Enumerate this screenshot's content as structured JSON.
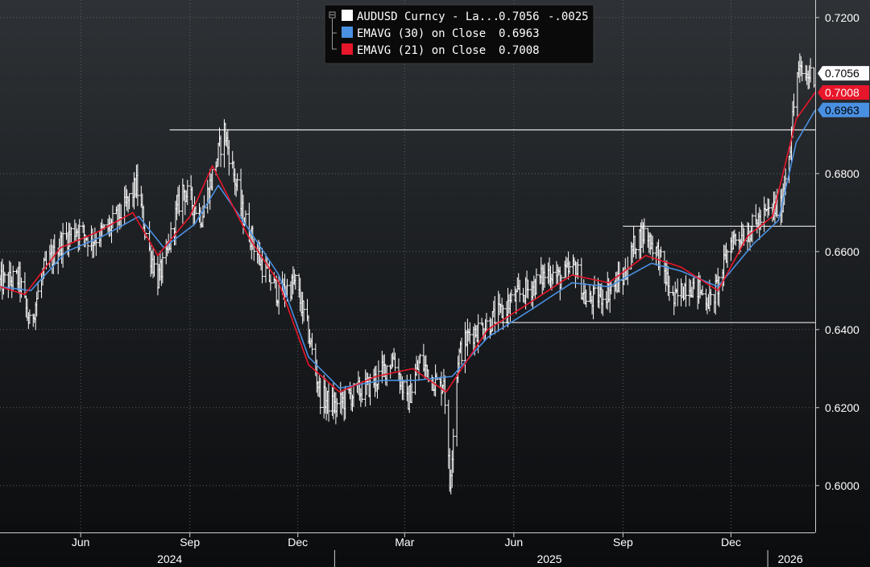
{
  "colors": {
    "price": "#ffffff",
    "ema30": "#4a90e2",
    "ema21": "#e8162a",
    "ref_line": "#e6e6e6",
    "grid": "#5b6066",
    "legend_bg": "#0a0a0a"
  },
  "legend": {
    "price_label": "AUDUSD Curncy - La...",
    "price_value": "0.7056",
    "price_change": "-.0025",
    "ema30_label": "EMAVG (30)  on Close",
    "ema30_value": "0.6963",
    "ema21_label": "EMAVG (21)  on Close",
    "ema21_value": "0.7008"
  },
  "tags": {
    "price": "0.7056",
    "ema21": "0.7008",
    "ema30": "0.6963"
  },
  "chart_data": {
    "type": "line",
    "title": "",
    "xlabel": "",
    "ylabel": "",
    "x_range": [
      "2024-03-25",
      "2026-02-10"
    ],
    "ylim": [
      0.588,
      0.7245
    ],
    "y_ticks": [
      "0.6000",
      "0.6200",
      "0.6400",
      "0.6600",
      "0.6800",
      "0.7200"
    ],
    "grid": true,
    "legend_placement": "top-center",
    "x_month_ticks": [
      {
        "date": "2024-06-01",
        "label": "Jun"
      },
      {
        "date": "2024-09-01",
        "label": "Sep"
      },
      {
        "date": "2024-12-01",
        "label": "Dec"
      },
      {
        "date": "2025-03-01",
        "label": "Mar"
      },
      {
        "date": "2025-06-01",
        "label": "Jun"
      },
      {
        "date": "2025-09-01",
        "label": "Sep"
      },
      {
        "date": "2025-12-01",
        "label": "Dec"
      }
    ],
    "x_year_labels": [
      {
        "date": "2024-08-15",
        "label": "2024"
      },
      {
        "date": "2025-07-01",
        "label": "2025"
      },
      {
        "date": "2026-01-20",
        "label": "2026"
      }
    ],
    "x_year_separators": [
      "2025-01-01",
      "2026-01-01"
    ],
    "horizontal_lines": [
      {
        "value": 0.6912,
        "from": "2024-08-15"
      },
      {
        "value": 0.6665,
        "from": "2025-09-01"
      },
      {
        "value": 0.6418,
        "from": "2025-05-15"
      }
    ],
    "series": [
      {
        "name": "AUDUSD Curncy",
        "style": "daily-bars",
        "anchor_dates": [
          "2024-03-25",
          "2024-04-10",
          "2024-04-19",
          "2024-05-01",
          "2024-05-15",
          "2024-05-28",
          "2024-06-10",
          "2024-06-25",
          "2024-07-08",
          "2024-07-18",
          "2024-07-29",
          "2024-08-05",
          "2024-08-12",
          "2024-08-19",
          "2024-08-26",
          "2024-09-02",
          "2024-09-11",
          "2024-09-30",
          "2024-10-15",
          "2024-10-31",
          "2024-11-15",
          "2024-11-29",
          "2024-12-10",
          "2024-12-20",
          "2025-01-02",
          "2025-01-13",
          "2025-01-28",
          "2025-02-07",
          "2025-02-20",
          "2025-03-03",
          "2025-03-14",
          "2025-03-31",
          "2025-04-03",
          "2025-04-08",
          "2025-04-15",
          "2025-04-25",
          "2025-05-08",
          "2025-05-20",
          "2025-06-02",
          "2025-06-16",
          "2025-07-01",
          "2025-07-10",
          "2025-07-23",
          "2025-08-01",
          "2025-08-15",
          "2025-09-01",
          "2025-09-12",
          "2025-09-20",
          "2025-10-01",
          "2025-10-14",
          "2025-10-25",
          "2025-11-05",
          "2025-11-14",
          "2025-11-21",
          "2025-12-01",
          "2025-12-15",
          "2025-12-29",
          "2026-01-05",
          "2026-01-12",
          "2026-01-20",
          "2026-01-26",
          "2026-02-02",
          "2026-02-09"
        ],
        "anchor_values": [
          0.652,
          0.653,
          0.641,
          0.655,
          0.662,
          0.666,
          0.663,
          0.666,
          0.671,
          0.677,
          0.66,
          0.653,
          0.658,
          0.668,
          0.676,
          0.673,
          0.669,
          0.691,
          0.67,
          0.657,
          0.649,
          0.652,
          0.639,
          0.623,
          0.62,
          0.623,
          0.625,
          0.628,
          0.633,
          0.621,
          0.632,
          0.625,
          0.628,
          0.6,
          0.633,
          0.639,
          0.641,
          0.644,
          0.648,
          0.651,
          0.655,
          0.653,
          0.656,
          0.647,
          0.649,
          0.653,
          0.663,
          0.665,
          0.659,
          0.647,
          0.652,
          0.65,
          0.647,
          0.652,
          0.663,
          0.665,
          0.669,
          0.671,
          0.671,
          0.688,
          0.706,
          0.705,
          0.7056
        ],
        "color_key": "price"
      },
      {
        "name": "EMAVG (30)  on Close",
        "style": "line",
        "anchor_dates": [
          "2024-03-25",
          "2024-04-20",
          "2024-05-20",
          "2024-06-20",
          "2024-07-20",
          "2024-08-10",
          "2024-09-05",
          "2024-09-25",
          "2024-10-20",
          "2024-11-15",
          "2024-12-10",
          "2025-01-05",
          "2025-02-10",
          "2025-03-10",
          "2025-04-10",
          "2025-05-10",
          "2025-06-15",
          "2025-07-20",
          "2025-08-20",
          "2025-09-25",
          "2025-10-20",
          "2025-11-20",
          "2025-12-20",
          "2026-01-10",
          "2026-01-25",
          "2026-02-10"
        ],
        "anchor_values": [
          0.651,
          0.65,
          0.66,
          0.664,
          0.669,
          0.661,
          0.667,
          0.677,
          0.666,
          0.654,
          0.633,
          0.625,
          0.627,
          0.627,
          0.628,
          0.638,
          0.645,
          0.652,
          0.651,
          0.657,
          0.655,
          0.651,
          0.662,
          0.668,
          0.688,
          0.6963
        ],
        "color_key": "ema30"
      },
      {
        "name": "EMAVG (21)  on Close",
        "style": "line",
        "anchor_dates": [
          "2024-03-25",
          "2024-04-15",
          "2024-05-15",
          "2024-06-15",
          "2024-07-15",
          "2024-08-05",
          "2024-09-01",
          "2024-09-20",
          "2024-10-20",
          "2024-11-15",
          "2024-12-10",
          "2025-01-05",
          "2025-02-05",
          "2025-03-08",
          "2025-04-05",
          "2025-05-10",
          "2025-06-15",
          "2025-07-20",
          "2025-08-20",
          "2025-09-20",
          "2025-10-20",
          "2025-11-20",
          "2025-12-15",
          "2026-01-05",
          "2026-01-25",
          "2026-02-10"
        ],
        "anchor_values": [
          0.651,
          0.649,
          0.661,
          0.665,
          0.67,
          0.659,
          0.669,
          0.682,
          0.664,
          0.652,
          0.631,
          0.624,
          0.628,
          0.63,
          0.624,
          0.64,
          0.647,
          0.654,
          0.652,
          0.659,
          0.656,
          0.65,
          0.664,
          0.669,
          0.694,
          0.7008
        ],
        "color_key": "ema21"
      }
    ]
  }
}
